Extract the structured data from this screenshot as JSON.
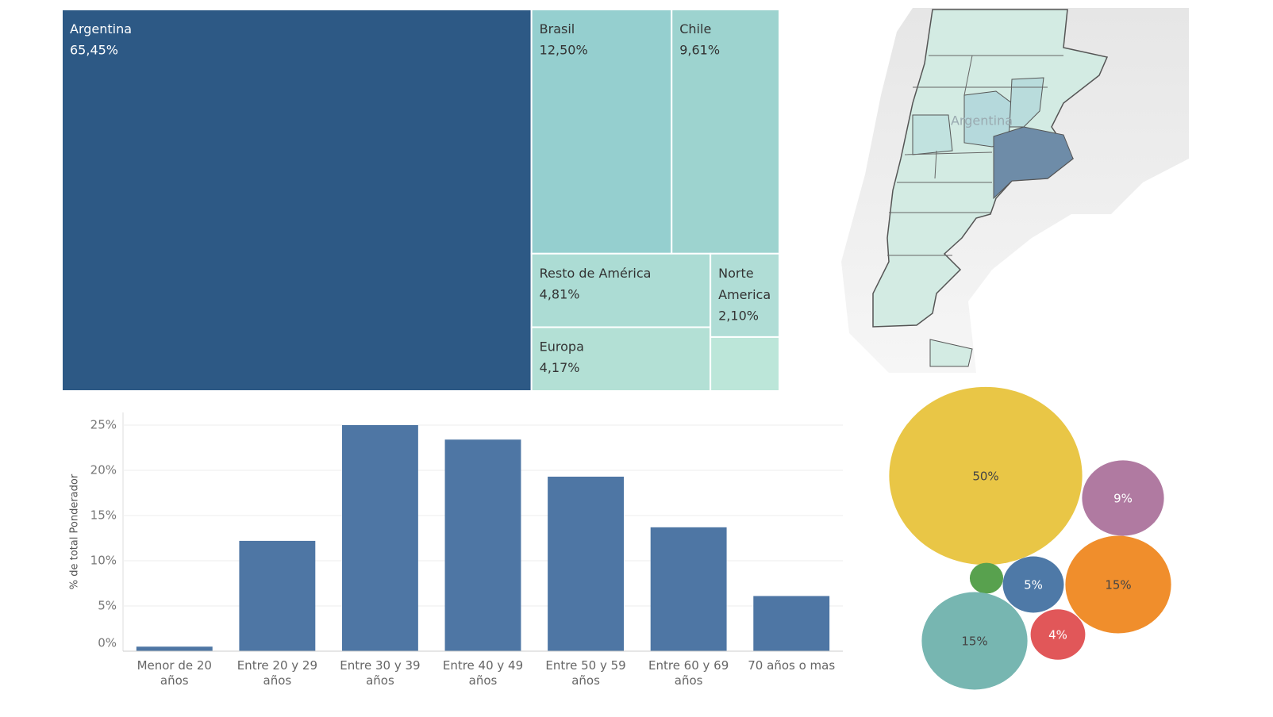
{
  "chart_data": [
    {
      "type": "treemap",
      "categories": [
        "Argentina",
        "Brasil",
        "Chile",
        "Resto de América",
        "Europa",
        "Norte America",
        null
      ],
      "values": [
        65.45,
        12.5,
        9.61,
        4.81,
        4.17,
        2.1,
        1.36
      ],
      "value_labels": [
        "65,45%",
        "12,50%",
        "9,61%",
        "4,81%",
        "4,17%",
        "2,10%",
        null
      ],
      "colors": [
        "#2d5985",
        "#95cfcf",
        "#9dd3cf",
        "#acdcd4",
        "#b3e0d5",
        "#b0ddd6",
        "#bce6d9"
      ]
    },
    {
      "type": "map",
      "label": "Argentina"
    },
    {
      "type": "bar",
      "y_label": "% de total Ponderador",
      "categories": [
        "Menor de 20 años",
        "Entre 20 y 29 años",
        "Entre 30 y 39 años",
        "Entre 40 y 49 años",
        "Entre 50 y 59 años",
        "Entre 60 y 69 años",
        "70 años o mas"
      ],
      "values": [
        0.5,
        12.2,
        25.0,
        23.4,
        19.3,
        13.7,
        6.1
      ],
      "color": "#4e76a4",
      "ylim": [
        0,
        25
      ],
      "yticks": [
        {
          "value": 0,
          "label": "0%"
        },
        {
          "value": 5,
          "label": "5%"
        },
        {
          "value": 10,
          "label": "10%"
        },
        {
          "value": 15,
          "label": "15%"
        },
        {
          "value": 20,
          "label": "20%"
        },
        {
          "value": 25,
          "label": "25%"
        }
      ],
      "grid": true
    },
    {
      "type": "bubble",
      "values": [
        50,
        9,
        15,
        1.5,
        5,
        15,
        4
      ],
      "value_labels": [
        "50%",
        "9%",
        "15%",
        null,
        "5%",
        "15%",
        "4%"
      ],
      "colors": [
        "#e9c646",
        "#b07aa1",
        "#f08e2c",
        "#58a14e",
        "#4e79a7",
        "#77b6b1",
        "#e15759"
      ]
    }
  ]
}
